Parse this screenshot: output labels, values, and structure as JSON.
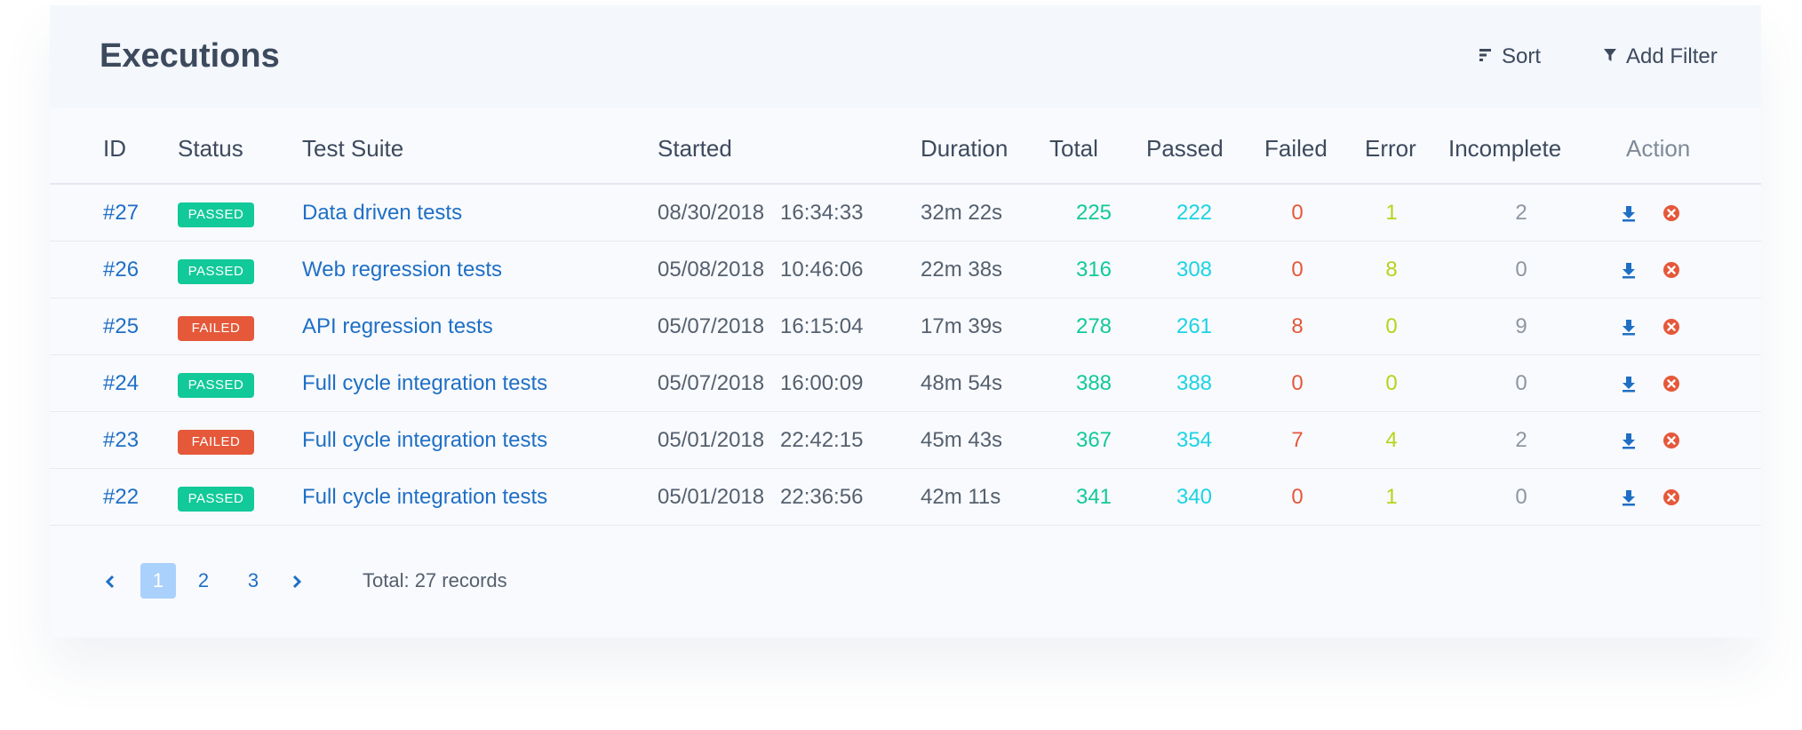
{
  "header": {
    "title": "Executions",
    "sort_label": "Sort",
    "filter_label": "Add Filter"
  },
  "columns": {
    "id": "ID",
    "status": "Status",
    "suite": "Test Suite",
    "started": "Started",
    "duration": "Duration",
    "total": "Total",
    "passed": "Passed",
    "failed": "Failed",
    "error": "Error",
    "incomplete": "Incomplete",
    "action": "Action"
  },
  "rows": [
    {
      "id": "#27",
      "status": "PASSED",
      "suite": "Data driven tests",
      "date": "08/30/2018",
      "time": "16:34:33",
      "duration": "32m 22s",
      "total": "225",
      "passed": "222",
      "failed": "0",
      "error": "1",
      "incomplete": "2"
    },
    {
      "id": "#26",
      "status": "PASSED",
      "suite": "Web regression tests",
      "date": "05/08/2018",
      "time": "10:46:06",
      "duration": "22m 38s",
      "total": "316",
      "passed": "308",
      "failed": "0",
      "error": "8",
      "incomplete": "0"
    },
    {
      "id": "#25",
      "status": "FAILED",
      "suite": "API regression tests",
      "date": "05/07/2018",
      "time": "16:15:04",
      "duration": "17m 39s",
      "total": "278",
      "passed": "261",
      "failed": "8",
      "error": "0",
      "incomplete": "9"
    },
    {
      "id": "#24",
      "status": "PASSED",
      "suite": "Full cycle integration tests",
      "date": "05/07/2018",
      "time": "16:00:09",
      "duration": "48m 54s",
      "total": "388",
      "passed": "388",
      "failed": "0",
      "error": "0",
      "incomplete": "0"
    },
    {
      "id": "#23",
      "status": "FAILED",
      "suite": "Full cycle integration tests",
      "date": "05/01/2018",
      "time": "22:42:15",
      "duration": "45m 43s",
      "total": "367",
      "passed": "354",
      "failed": "7",
      "error": "4",
      "incomplete": "2"
    },
    {
      "id": "#22",
      "status": "PASSED",
      "suite": "Full cycle integration tests",
      "date": "05/01/2018",
      "time": "22:36:56",
      "duration": "42m 11s",
      "total": "341",
      "passed": "340",
      "failed": "0",
      "error": "1",
      "incomplete": "0"
    }
  ],
  "icons": {
    "sort": "sort-icon",
    "filter": "filter-icon",
    "download": "download-icon",
    "delete": "delete-icon",
    "prev": "chevron-left-icon",
    "next": "chevron-right-icon"
  },
  "colors": {
    "link": "#1f6fc5",
    "passed_badge": "#12c99a",
    "failed_badge": "#e5583a",
    "total": "#12c99a",
    "passed": "#1cd3e3",
    "failed": "#e5583a",
    "error": "#b8d21b",
    "incomplete": "#8d96a2",
    "delete": "#e5583a"
  },
  "pagination": {
    "pages": [
      "1",
      "2",
      "3"
    ],
    "current": "1",
    "total_text": "Total: 27 records"
  }
}
